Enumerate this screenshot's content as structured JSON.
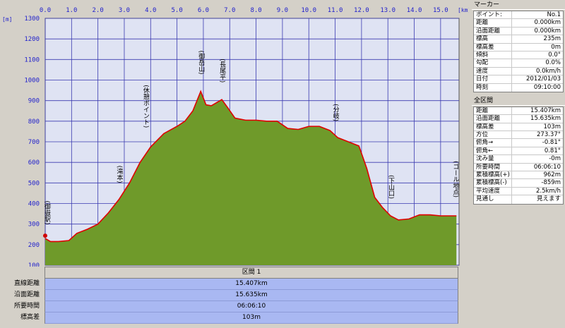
{
  "chart": {
    "unit_y": "[m]",
    "unit_x": "[km]"
  },
  "chart_data": {
    "type": "area",
    "x_ticks": [
      "0.0",
      "1.0",
      "2.0",
      "3.0",
      "4.0",
      "5.0",
      "6.0",
      "7.0",
      "8.0",
      "9.0",
      "10.0",
      "11.0",
      "12.0",
      "13.0",
      "14.0",
      "15.0"
    ],
    "y_ticks": [
      "100",
      "200",
      "300",
      "400",
      "500",
      "600",
      "700",
      "800",
      "900",
      "1000",
      "1100",
      "1200",
      "1300"
    ],
    "xlim": [
      0,
      15.7
    ],
    "ylim": [
      100,
      1300
    ],
    "x": [
      0,
      0.2,
      0.5,
      0.9,
      1.2,
      1.6,
      2.0,
      2.4,
      2.8,
      3.2,
      3.6,
      4.0,
      4.5,
      5.0,
      5.3,
      5.6,
      5.9,
      6.1,
      6.3,
      6.5,
      6.7,
      6.9,
      7.2,
      7.6,
      8.0,
      8.4,
      8.8,
      9.2,
      9.6,
      10.0,
      10.4,
      10.8,
      11.1,
      11.5,
      11.9,
      12.2,
      12.5,
      12.8,
      13.1,
      13.4,
      13.8,
      14.2,
      14.6,
      15.0,
      15.4,
      15.6
    ],
    "y": [
      230,
      215,
      215,
      220,
      255,
      275,
      300,
      355,
      420,
      500,
      600,
      675,
      740,
      775,
      800,
      850,
      945,
      880,
      875,
      890,
      905,
      870,
      815,
      805,
      805,
      800,
      800,
      765,
      760,
      775,
      775,
      755,
      720,
      700,
      680,
      570,
      430,
      380,
      340,
      320,
      325,
      345,
      345,
      340,
      340,
      340
    ],
    "landmarks": [
      {
        "label": "(御岳山)",
        "x": 5.9
      },
      {
        "label": "(長尾平)",
        "x": 6.7
      },
      {
        "label": "(休憩ポイント)",
        "x": 3.8
      },
      {
        "label": "(滝本)",
        "x": 2.8
      },
      {
        "label": "(御嶽駅)",
        "x": 0.05
      },
      {
        "label": "(分岐)",
        "x": 11.0
      },
      {
        "label": "(下山口)",
        "x": 13.1
      },
      {
        "label": "(ゴール地点)",
        "x": 15.55
      }
    ],
    "colors": {
      "fill": "#6f9a2a",
      "line": "#e00000",
      "plot_bg": "#dfe3f3",
      "grid": "#3a3ab0"
    }
  },
  "summary": {
    "header": "区間 1",
    "labels": [
      "直線距離",
      "沿面距離",
      "所要時間",
      "標高差"
    ],
    "values": [
      "15.407km",
      "15.635km",
      "06:06:10",
      "103m"
    ]
  },
  "marker_panel": {
    "title": "マーカー",
    "rows": [
      {
        "k": "ポイント:",
        "v": "No.1"
      },
      {
        "k": "距離",
        "v": "0.000km"
      },
      {
        "k": "沿面距離",
        "v": "0.000km"
      },
      {
        "k": "標高",
        "v": "235m"
      },
      {
        "k": "標高差",
        "v": "0m"
      },
      {
        "k": "傾斜",
        "v": "0.0°"
      },
      {
        "k": "勾配",
        "v": "0.0%"
      },
      {
        "k": "速度",
        "v": "0.0km/h"
      },
      {
        "k": "日付",
        "v": "2012/01/03"
      },
      {
        "k": "時刻",
        "v": "09:10:00"
      }
    ]
  },
  "total_panel": {
    "title": "全区間",
    "rows": [
      {
        "k": "距離",
        "v": "15.407km"
      },
      {
        "k": "沿面距離",
        "v": "15.635km"
      },
      {
        "k": "標高差",
        "v": "103m"
      },
      {
        "k": "方位",
        "v": "273.37°"
      },
      {
        "k": "俯角→",
        "v": "-0.81°"
      },
      {
        "k": "俯角←",
        "v": "0.81°"
      },
      {
        "k": "沈み量",
        "v": "-0m"
      },
      {
        "k": "所要時間",
        "v": "06:06:10"
      },
      {
        "k": "累積標高(+)",
        "v": "962m"
      },
      {
        "k": "累積標高(-)",
        "v": "-859m"
      },
      {
        "k": "平均速度",
        "v": "2.5km/h"
      },
      {
        "k": "見通し",
        "v": "見えます"
      }
    ]
  }
}
